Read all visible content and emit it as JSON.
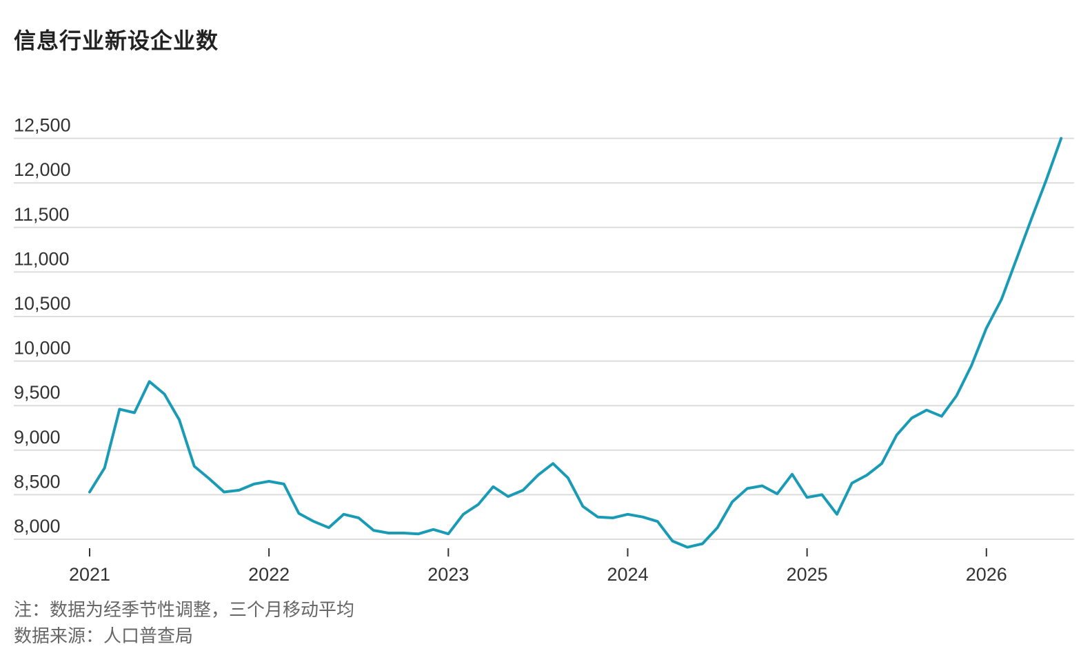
{
  "chart_data": {
    "type": "line",
    "title": "信息行业新设企业数",
    "xlabel": "",
    "ylabel": "",
    "ylim": [
      7900,
      12500
    ],
    "y_ticks": [
      {
        "value": 8000,
        "label": "8,000"
      },
      {
        "value": 8500,
        "label": "8,500"
      },
      {
        "value": 9000,
        "label": "9,000"
      },
      {
        "value": 9500,
        "label": "9,500"
      },
      {
        "value": 10000,
        "label": "10,000"
      },
      {
        "value": 10500,
        "label": "10,500"
      },
      {
        "value": 11000,
        "label": "11,000"
      },
      {
        "value": 11500,
        "label": "11,500"
      },
      {
        "value": 12000,
        "label": "12,000"
      },
      {
        "value": 12500,
        "label": "12,500"
      }
    ],
    "x_ticks": [
      "2021",
      "2022",
      "2023",
      "2024",
      "2025",
      "2026"
    ],
    "grid": "horizontal",
    "line_color": "#1a9bb5",
    "series": [
      {
        "x": [
          "2021-01",
          "2021-02",
          "2021-03",
          "2021-04",
          "2021-05",
          "2021-06",
          "2021-07",
          "2021-08",
          "2021-09",
          "2021-10",
          "2021-11",
          "2021-12",
          "2022-01",
          "2022-02",
          "2022-03",
          "2022-04",
          "2022-05",
          "2022-06",
          "2022-07",
          "2022-08",
          "2022-09",
          "2022-10",
          "2022-11",
          "2022-12",
          "2023-01",
          "2023-02",
          "2023-03",
          "2023-04",
          "2023-05",
          "2023-06",
          "2023-07",
          "2023-08",
          "2023-09",
          "2023-10",
          "2023-11",
          "2023-12",
          "2024-01",
          "2024-02",
          "2024-03",
          "2024-04",
          "2024-05",
          "2024-06",
          "2024-07",
          "2024-08",
          "2024-09",
          "2024-10",
          "2024-11",
          "2024-12",
          "2025-01",
          "2025-02",
          "2025-03",
          "2025-04",
          "2025-05",
          "2025-06",
          "2025-07",
          "2025-08",
          "2025-09",
          "2025-10",
          "2025-11",
          "2025-12",
          "2026-01",
          "2026-02",
          "2026-03",
          "2026-04",
          "2026-05",
          "2026-06"
        ],
        "values": [
          8530,
          8800,
          9460,
          9420,
          9770,
          9630,
          9340,
          8820,
          8680,
          8530,
          8550,
          8620,
          8650,
          8620,
          8290,
          8200,
          8130,
          8280,
          8240,
          8100,
          8070,
          8070,
          8060,
          8110,
          8060,
          8280,
          8390,
          8590,
          8480,
          8550,
          8720,
          8850,
          8690,
          8370,
          8250,
          8240,
          8280,
          8250,
          8200,
          7980,
          7910,
          7950,
          8130,
          8420,
          8570,
          8600,
          8510,
          8730,
          8470,
          8500,
          8280,
          8630,
          8720,
          8850,
          9170,
          9360,
          9450,
          9380,
          9610,
          9950,
          10370,
          10690,
          11140,
          11590,
          12030,
          12500
        ]
      }
    ]
  },
  "notes": {
    "adjustment": "注：数据为经季节性调整，三个月移动平均",
    "source": "数据来源：人口普查局"
  }
}
